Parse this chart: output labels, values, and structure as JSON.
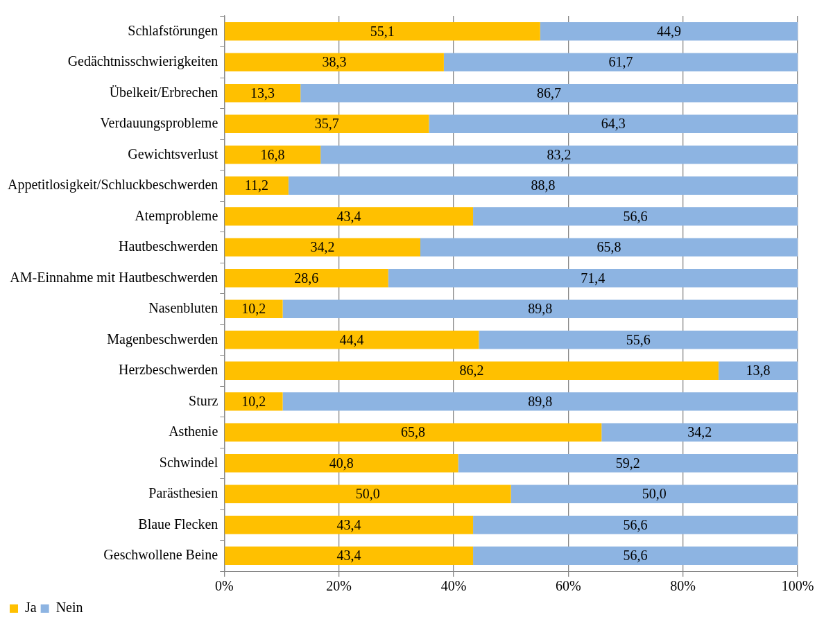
{
  "chart_data": {
    "type": "bar",
    "orientation": "horizontal",
    "stacked": true,
    "categories": [
      "Schlafstörungen",
      "Gedächtnisschwierigkeiten",
      "Übelkeit/Erbrechen",
      "Verdauungsprobleme",
      "Gewichtsverlust",
      "Appetitlosigkeit/Schluckbeschwerden",
      "Atemprobleme",
      "Hautbeschwerden",
      "AM-Einnahme mit Hautbeschwerden",
      "Nasenbluten",
      "Magenbeschwerden",
      "Herzbeschwerden",
      "Sturz",
      "Asthenie",
      "Schwindel",
      "Parästhesien",
      "Blaue Flecken",
      "Geschwollene Beine"
    ],
    "series": [
      {
        "name": "Ja",
        "color": "#ffc000",
        "values": [
          55.1,
          38.3,
          13.3,
          35.7,
          16.8,
          11.2,
          43.4,
          34.2,
          28.6,
          10.2,
          44.4,
          86.2,
          10.2,
          65.8,
          40.8,
          50.0,
          43.4,
          43.4
        ],
        "value_labels": [
          "55,1",
          "38,3",
          "13,3",
          "35,7",
          "16,8",
          "11,2",
          "43,4",
          "34,2",
          "28,6",
          "10,2",
          "44,4",
          "86,2",
          "10,2",
          "65,8",
          "40,8",
          "50,0",
          "43,4",
          "43,4"
        ]
      },
      {
        "name": "Nein",
        "color": "#8db4e2",
        "values": [
          44.9,
          61.7,
          86.7,
          64.3,
          83.2,
          88.8,
          56.6,
          65.8,
          71.4,
          89.8,
          55.6,
          13.8,
          89.8,
          34.2,
          59.2,
          50.0,
          56.6,
          56.6
        ],
        "value_labels": [
          "44,9",
          "61,7",
          "86,7",
          "64,3",
          "83,2",
          "88,8",
          "56,6",
          "65,8",
          "71,4",
          "89,8",
          "55,6",
          "13,8",
          "89,8",
          "34,2",
          "59,2",
          "50,0",
          "56,6",
          "56,6"
        ]
      }
    ],
    "xlim": [
      0,
      100
    ],
    "xticks": [
      {
        "value": 0,
        "label": "0%"
      },
      {
        "value": 20,
        "label": "20%"
      },
      {
        "value": 40,
        "label": "40%"
      },
      {
        "value": 60,
        "label": "60%"
      },
      {
        "value": 80,
        "label": "80%"
      },
      {
        "value": 100,
        "label": "100%"
      }
    ],
    "grid": "x",
    "legend": "bottom"
  }
}
